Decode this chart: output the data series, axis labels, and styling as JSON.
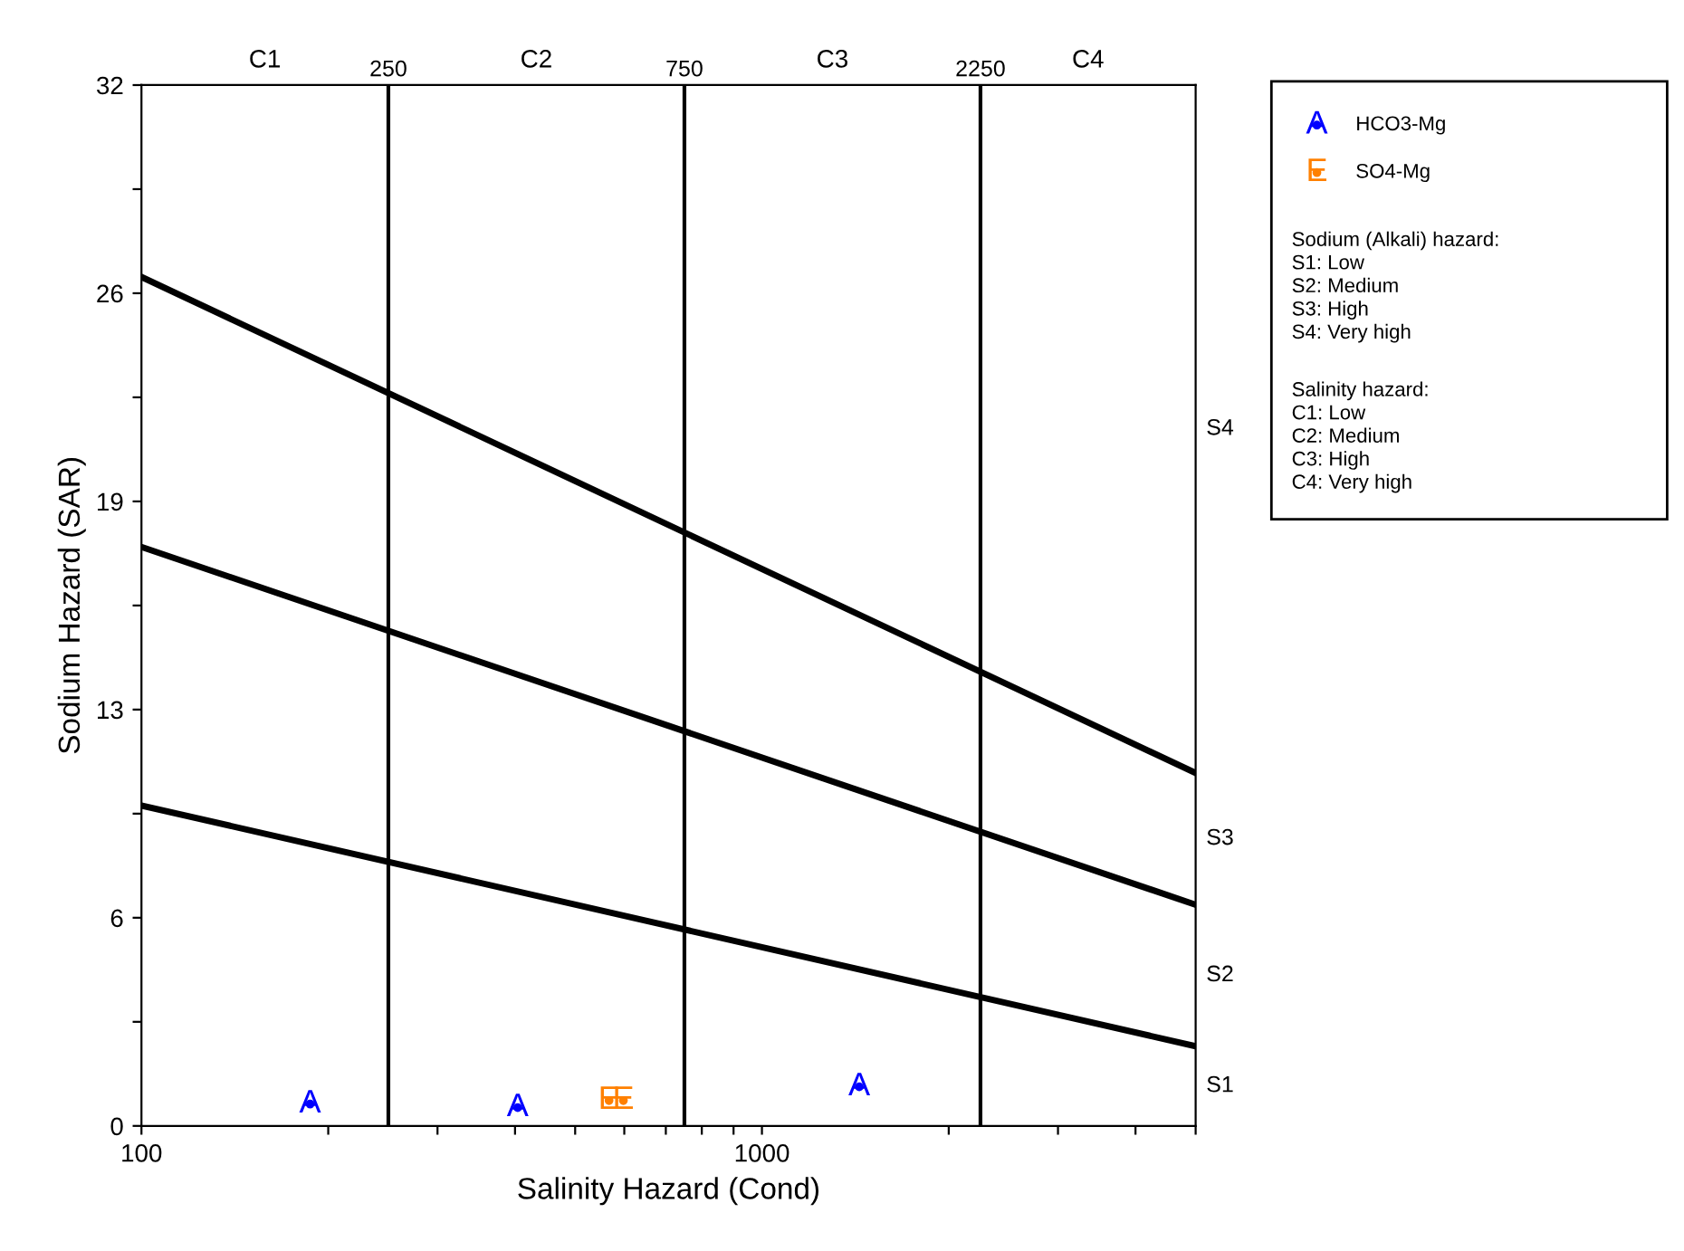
{
  "chart_data": {
    "type": "scatter",
    "xlabel": "Salinity Hazard (Cond)",
    "ylabel": "Sodium Hazard (SAR)",
    "log": "x",
    "xlim": [
      100,
      5000
    ],
    "ylim": [
      0,
      32
    ],
    "xticks": [
      100,
      {
        "value": 200,
        "label": null
      },
      {
        "value": 300,
        "label": null
      },
      {
        "value": 400,
        "label": null
      },
      {
        "value": 500,
        "label": null
      },
      {
        "value": 600,
        "label": null
      },
      {
        "value": 700,
        "label": null
      },
      {
        "value": 800,
        "label": null
      },
      {
        "value": 900,
        "label": null
      },
      1000,
      {
        "value": 2000,
        "label": null
      },
      {
        "value": 3000,
        "label": null
      },
      {
        "value": 4000,
        "label": null
      },
      {
        "value": 5000,
        "label": null
      }
    ],
    "yticks": [
      0,
      {
        "value": 3.2,
        "label": null
      },
      {
        "value": 6.4,
        "label": "6"
      },
      {
        "value": 9.6,
        "label": null
      },
      {
        "value": 12.8,
        "label": "13"
      },
      {
        "value": 16,
        "label": null
      },
      {
        "value": 19.2,
        "label": "19"
      },
      {
        "value": 22.4,
        "label": null
      },
      {
        "value": 25.6,
        "label": "26"
      },
      {
        "value": 28.8,
        "label": null
      },
      32
    ],
    "grid": false,
    "legend": "right",
    "series": [
      {
        "name": "HCO3-Mg",
        "color": "#0000ff",
        "marker": "circle",
        "x": [
          187,
          404,
          1435
        ],
        "values": [
          0.67,
          0.56,
          1.2
        ],
        "value_labels": [
          "A",
          "A",
          "A"
        ]
      },
      {
        "name": "SO4-Mg",
        "color": "#ff8000",
        "marker": "circle",
        "x": [
          567,
          598
        ],
        "values": [
          0.78,
          0.78
        ],
        "value_labels": [
          "E",
          "E"
        ]
      },
      {
        "type": "line",
        "color": "#000000",
        "x": [
          100,
          5000
        ],
        "values": [
          9.85,
          2.45
        ]
      },
      {
        "type": "line",
        "color": "#000000",
        "x": [
          100,
          5000
        ],
        "values": [
          17.8,
          6.8
        ]
      },
      {
        "type": "line",
        "color": "#000000",
        "x": [
          100,
          5000
        ],
        "values": [
          26.1,
          10.85
        ]
      }
    ],
    "ref_lines": [
      {
        "axis": "x",
        "value": 250,
        "label": "250",
        "color": "#000000"
      },
      {
        "axis": "x",
        "value": 750,
        "label": "750",
        "color": "#000000"
      },
      {
        "axis": "x",
        "value": 2250,
        "label": "2250",
        "color": "#000000"
      }
    ],
    "annotations": [
      "C1",
      "C2",
      "C3",
      "C4",
      "S1",
      "S2",
      "S3",
      "S4",
      "Sodium (Alkali) hazard:\nS1: Low\nS2: Medium\nS3: High\nS4: Very high",
      "Salinity hazard:\nC1: Low\nC2: Medium\nC3: High\nC4: Very high"
    ]
  }
}
